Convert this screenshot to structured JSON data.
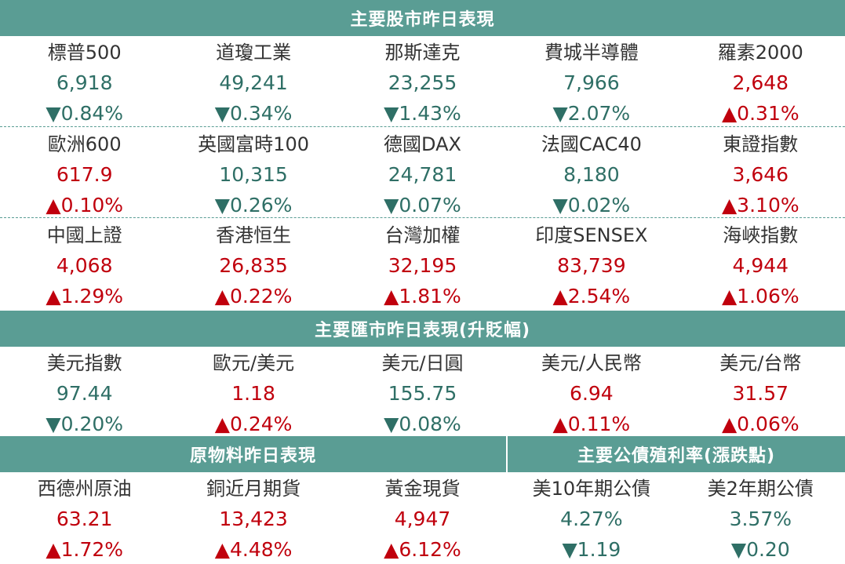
{
  "stocks": {
    "title": "主要股市昨日表現",
    "rows": [
      [
        {
          "name": "標普500",
          "value": "6,918",
          "change": "▼0.84%",
          "dir": "down"
        },
        {
          "name": "道瓊工業",
          "value": "49,241",
          "change": "▼0.34%",
          "dir": "down"
        },
        {
          "name": "那斯達克",
          "value": "23,255",
          "change": "▼1.43%",
          "dir": "down"
        },
        {
          "name": "費城半導體",
          "value": "7,966",
          "change": "▼2.07%",
          "dir": "down"
        },
        {
          "name": "羅素2000",
          "value": "2,648",
          "change": "▲0.31%",
          "dir": "up"
        }
      ],
      [
        {
          "name": "歐洲600",
          "value": "617.9",
          "change": "▲0.10%",
          "dir": "up"
        },
        {
          "name": "英國富時100",
          "value": "10,315",
          "change": "▼0.26%",
          "dir": "down"
        },
        {
          "name": "德國DAX",
          "value": "24,781",
          "change": "▼0.07%",
          "dir": "down"
        },
        {
          "name": "法國CAC40",
          "value": "8,180",
          "change": "▼0.02%",
          "dir": "down"
        },
        {
          "name": "東證指數",
          "value": "3,646",
          "change": "▲3.10%",
          "dir": "up"
        }
      ],
      [
        {
          "name": "中國上證",
          "value": "4,068",
          "change": "▲1.29%",
          "dir": "up"
        },
        {
          "name": "香港恒生",
          "value": "26,835",
          "change": "▲0.22%",
          "dir": "up"
        },
        {
          "name": "台灣加權",
          "value": "32,195",
          "change": "▲1.81%",
          "dir": "up"
        },
        {
          "name": "印度SENSEX",
          "value": "83,739",
          "change": "▲2.54%",
          "dir": "up"
        },
        {
          "name": "海峽指數",
          "value": "4,944",
          "change": "▲1.06%",
          "dir": "up"
        }
      ]
    ]
  },
  "fx": {
    "title": "主要匯市昨日表現(升貶幅)",
    "rows": [
      [
        {
          "name": "美元指數",
          "value": "97.44",
          "change": "▼0.20%",
          "dir": "down"
        },
        {
          "name": "歐元/美元",
          "value": "1.18",
          "change": "▲0.24%",
          "dir": "up"
        },
        {
          "name": "美元/日圓",
          "value": "155.75",
          "change": "▼0.08%",
          "dir": "down"
        },
        {
          "name": "美元/人民幣",
          "value": "6.94",
          "change": "▲0.11%",
          "dir": "up"
        },
        {
          "name": "美元/台幣",
          "value": "31.57",
          "change": "▲0.06%",
          "dir": "up"
        }
      ]
    ]
  },
  "commodities": {
    "title": "原物料昨日表現",
    "items": [
      {
        "name": "西德州原油",
        "value": "63.21",
        "change": "▲1.72%",
        "dir": "up"
      },
      {
        "name": "銅近月期貨",
        "value": "13,423",
        "change": "▲4.48%",
        "dir": "up"
      },
      {
        "name": "黃金現貨",
        "value": "4,947",
        "change": "▲6.12%",
        "dir": "up"
      }
    ]
  },
  "bonds": {
    "title": "主要公債殖利率(漲跌點)",
    "items": [
      {
        "name": "美10年期公債",
        "value": "4.27%",
        "change": "▼1.19",
        "dir": "down"
      },
      {
        "name": "美2年期公債",
        "value": "3.57%",
        "change": "▼0.20",
        "dir": "down"
      }
    ]
  },
  "colors": {
    "header_bg": "#5a9d94",
    "up": "#c0000d",
    "down": "#2f6f66",
    "name_text": "#333333"
  }
}
